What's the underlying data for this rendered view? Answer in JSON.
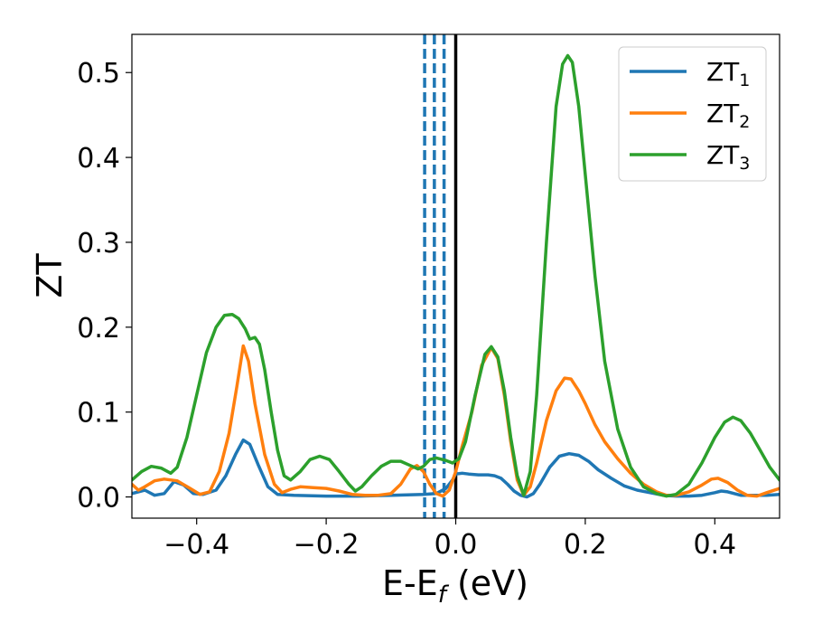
{
  "chart_data": {
    "type": "line",
    "title": "",
    "xlabel": {
      "main": "E-E",
      "sub": "f",
      "unit": " (eV)"
    },
    "ylabel": "ZT",
    "xlim": [
      -0.5,
      0.5
    ],
    "ylim": [
      -0.025,
      0.545
    ],
    "grid": false,
    "legend": "top-right",
    "xticks": [
      -0.4,
      -0.2,
      0.0,
      0.2,
      0.4
    ],
    "xtick_labels": [
      "−0.4",
      "−0.2",
      "0.0",
      "0.2",
      "0.4"
    ],
    "yticks": [
      0.0,
      0.1,
      0.2,
      0.3,
      0.4,
      0.5
    ],
    "ytick_labels": [
      "0.0",
      "0.1",
      "0.2",
      "0.3",
      "0.4",
      "0.5"
    ],
    "reference_lines": {
      "solid_vertical": {
        "x": 0.0,
        "color": "#000000"
      },
      "dashed_vertical": {
        "x": [
          -0.048,
          -0.033,
          -0.018
        ],
        "color": "#1f77b4"
      }
    },
    "series": [
      {
        "name": "ZT",
        "name_sub": "1",
        "color": "#1f77b4",
        "points": [
          [
            -0.5,
            0.004
          ],
          [
            -0.48,
            0.008
          ],
          [
            -0.465,
            0.002
          ],
          [
            -0.45,
            0.004
          ],
          [
            -0.435,
            0.018
          ],
          [
            -0.42,
            0.014
          ],
          [
            -0.405,
            0.004
          ],
          [
            -0.39,
            0.003
          ],
          [
            -0.37,
            0.008
          ],
          [
            -0.355,
            0.025
          ],
          [
            -0.34,
            0.05
          ],
          [
            -0.328,
            0.067
          ],
          [
            -0.318,
            0.062
          ],
          [
            -0.305,
            0.038
          ],
          [
            -0.29,
            0.012
          ],
          [
            -0.275,
            0.003
          ],
          [
            -0.25,
            0.002
          ],
          [
            -0.2,
            0.001
          ],
          [
            -0.15,
            0.001
          ],
          [
            -0.1,
            0.002
          ],
          [
            -0.05,
            0.003
          ],
          [
            -0.03,
            0.004
          ],
          [
            -0.015,
            0.01
          ],
          [
            -0.005,
            0.02
          ],
          [
            0.0,
            0.027
          ],
          [
            0.01,
            0.028
          ],
          [
            0.02,
            0.027
          ],
          [
            0.035,
            0.026
          ],
          [
            0.05,
            0.026
          ],
          [
            0.06,
            0.025
          ],
          [
            0.07,
            0.022
          ],
          [
            0.08,
            0.015
          ],
          [
            0.09,
            0.007
          ],
          [
            0.1,
            0.002
          ],
          [
            0.11,
            0.0
          ],
          [
            0.12,
            0.004
          ],
          [
            0.13,
            0.015
          ],
          [
            0.145,
            0.035
          ],
          [
            0.16,
            0.048
          ],
          [
            0.175,
            0.051
          ],
          [
            0.19,
            0.049
          ],
          [
            0.205,
            0.042
          ],
          [
            0.22,
            0.032
          ],
          [
            0.24,
            0.022
          ],
          [
            0.26,
            0.013
          ],
          [
            0.28,
            0.008
          ],
          [
            0.3,
            0.005
          ],
          [
            0.32,
            0.002
          ],
          [
            0.34,
            0.001
          ],
          [
            0.36,
            0.001
          ],
          [
            0.38,
            0.002
          ],
          [
            0.4,
            0.005
          ],
          [
            0.41,
            0.007
          ],
          [
            0.42,
            0.006
          ],
          [
            0.44,
            0.002
          ],
          [
            0.46,
            0.002
          ],
          [
            0.48,
            0.002
          ],
          [
            0.5,
            0.003
          ]
        ]
      },
      {
        "name": "ZT",
        "name_sub": "2",
        "color": "#ff7f0e",
        "points": [
          [
            -0.5,
            0.015
          ],
          [
            -0.49,
            0.008
          ],
          [
            -0.48,
            0.012
          ],
          [
            -0.465,
            0.019
          ],
          [
            -0.45,
            0.021
          ],
          [
            -0.43,
            0.019
          ],
          [
            -0.41,
            0.01
          ],
          [
            -0.395,
            0.003
          ],
          [
            -0.38,
            0.006
          ],
          [
            -0.365,
            0.03
          ],
          [
            -0.35,
            0.075
          ],
          [
            -0.338,
            0.13
          ],
          [
            -0.328,
            0.178
          ],
          [
            -0.32,
            0.16
          ],
          [
            -0.31,
            0.11
          ],
          [
            -0.295,
            0.05
          ],
          [
            -0.28,
            0.015
          ],
          [
            -0.268,
            0.005
          ],
          [
            -0.255,
            0.009
          ],
          [
            -0.24,
            0.012
          ],
          [
            -0.22,
            0.011
          ],
          [
            -0.2,
            0.01
          ],
          [
            -0.18,
            0.007
          ],
          [
            -0.16,
            0.003
          ],
          [
            -0.14,
            0.002
          ],
          [
            -0.12,
            0.002
          ],
          [
            -0.1,
            0.004
          ],
          [
            -0.085,
            0.015
          ],
          [
            -0.07,
            0.033
          ],
          [
            -0.06,
            0.037
          ],
          [
            -0.05,
            0.03
          ],
          [
            -0.04,
            0.015
          ],
          [
            -0.03,
            0.004
          ],
          [
            -0.02,
            0.001
          ],
          [
            -0.01,
            0.008
          ],
          [
            0.0,
            0.03
          ],
          [
            0.01,
            0.06
          ],
          [
            0.025,
            0.1
          ],
          [
            0.04,
            0.155
          ],
          [
            0.055,
            0.176
          ],
          [
            0.065,
            0.163
          ],
          [
            0.075,
            0.12
          ],
          [
            0.085,
            0.065
          ],
          [
            0.095,
            0.02
          ],
          [
            0.105,
            0.002
          ],
          [
            0.115,
            0.012
          ],
          [
            0.125,
            0.04
          ],
          [
            0.14,
            0.09
          ],
          [
            0.155,
            0.125
          ],
          [
            0.168,
            0.14
          ],
          [
            0.178,
            0.139
          ],
          [
            0.19,
            0.125
          ],
          [
            0.2,
            0.11
          ],
          [
            0.215,
            0.085
          ],
          [
            0.23,
            0.065
          ],
          [
            0.25,
            0.045
          ],
          [
            0.27,
            0.028
          ],
          [
            0.29,
            0.015
          ],
          [
            0.31,
            0.006
          ],
          [
            0.325,
            0.002
          ],
          [
            0.34,
            0.002
          ],
          [
            0.36,
            0.006
          ],
          [
            0.38,
            0.014
          ],
          [
            0.395,
            0.021
          ],
          [
            0.405,
            0.022
          ],
          [
            0.42,
            0.017
          ],
          [
            0.435,
            0.008
          ],
          [
            0.45,
            0.002
          ],
          [
            0.465,
            0.001
          ],
          [
            0.48,
            0.005
          ],
          [
            0.5,
            0.01
          ]
        ]
      },
      {
        "name": "ZT",
        "name_sub": "3",
        "color": "#2ca02c",
        "points": [
          [
            -0.5,
            0.02
          ],
          [
            -0.485,
            0.03
          ],
          [
            -0.47,
            0.036
          ],
          [
            -0.455,
            0.034
          ],
          [
            -0.44,
            0.028
          ],
          [
            -0.43,
            0.035
          ],
          [
            -0.415,
            0.07
          ],
          [
            -0.4,
            0.12
          ],
          [
            -0.385,
            0.17
          ],
          [
            -0.37,
            0.2
          ],
          [
            -0.357,
            0.214
          ],
          [
            -0.345,
            0.215
          ],
          [
            -0.335,
            0.21
          ],
          [
            -0.325,
            0.198
          ],
          [
            -0.318,
            0.186
          ],
          [
            -0.31,
            0.188
          ],
          [
            -0.303,
            0.18
          ],
          [
            -0.295,
            0.15
          ],
          [
            -0.285,
            0.1
          ],
          [
            -0.275,
            0.055
          ],
          [
            -0.265,
            0.025
          ],
          [
            -0.255,
            0.02
          ],
          [
            -0.24,
            0.03
          ],
          [
            -0.225,
            0.044
          ],
          [
            -0.21,
            0.048
          ],
          [
            -0.195,
            0.044
          ],
          [
            -0.18,
            0.03
          ],
          [
            -0.165,
            0.015
          ],
          [
            -0.155,
            0.007
          ],
          [
            -0.145,
            0.012
          ],
          [
            -0.13,
            0.025
          ],
          [
            -0.115,
            0.036
          ],
          [
            -0.1,
            0.042
          ],
          [
            -0.085,
            0.042
          ],
          [
            -0.07,
            0.037
          ],
          [
            -0.058,
            0.033
          ],
          [
            -0.05,
            0.036
          ],
          [
            -0.04,
            0.044
          ],
          [
            -0.03,
            0.046
          ],
          [
            -0.015,
            0.043
          ],
          [
            -0.005,
            0.04
          ],
          [
            0.005,
            0.045
          ],
          [
            0.015,
            0.065
          ],
          [
            0.03,
            0.12
          ],
          [
            0.045,
            0.168
          ],
          [
            0.055,
            0.177
          ],
          [
            0.065,
            0.165
          ],
          [
            0.075,
            0.125
          ],
          [
            0.085,
            0.07
          ],
          [
            0.095,
            0.025
          ],
          [
            0.105,
            0.002
          ],
          [
            0.115,
            0.03
          ],
          [
            0.125,
            0.12
          ],
          [
            0.14,
            0.3
          ],
          [
            0.155,
            0.46
          ],
          [
            0.165,
            0.51
          ],
          [
            0.173,
            0.52
          ],
          [
            0.18,
            0.512
          ],
          [
            0.19,
            0.46
          ],
          [
            0.2,
            0.38
          ],
          [
            0.215,
            0.26
          ],
          [
            0.23,
            0.16
          ],
          [
            0.25,
            0.08
          ],
          [
            0.27,
            0.035
          ],
          [
            0.29,
            0.012
          ],
          [
            0.31,
            0.004
          ],
          [
            0.325,
            0.001
          ],
          [
            0.34,
            0.003
          ],
          [
            0.36,
            0.015
          ],
          [
            0.38,
            0.04
          ],
          [
            0.4,
            0.07
          ],
          [
            0.415,
            0.088
          ],
          [
            0.428,
            0.094
          ],
          [
            0.44,
            0.09
          ],
          [
            0.455,
            0.075
          ],
          [
            0.47,
            0.055
          ],
          [
            0.485,
            0.035
          ],
          [
            0.5,
            0.02
          ]
        ]
      }
    ]
  }
}
